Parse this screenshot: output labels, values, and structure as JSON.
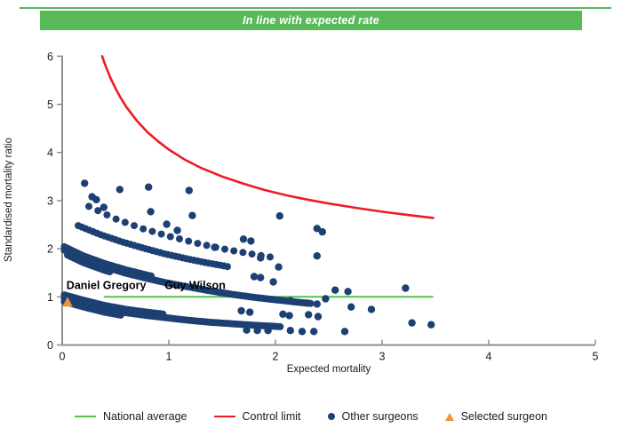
{
  "banner": {
    "title": "In line with expected rate",
    "bg_color": "#57b957",
    "text_color": "#ffffff"
  },
  "colors": {
    "navy": "#1d4073",
    "red": "#ed1c24",
    "green": "#52c352",
    "orange": "#f0922f",
    "axis": "#8f8f8f",
    "text": "#1a1a1a"
  },
  "chart_data": {
    "type": "scatter",
    "title": "In line with expected rate",
    "xlabel": "Expected mortality",
    "ylabel": "Standardised mortality ratio",
    "xlim": [
      0,
      5
    ],
    "ylim": [
      0,
      6
    ],
    "xticks": [
      0,
      1,
      2,
      3,
      4,
      5
    ],
    "yticks": [
      0,
      1,
      2,
      3,
      4,
      5,
      6
    ],
    "grid": false,
    "legend_position": "bottom",
    "national_average": {
      "value": 1,
      "x_start": 0.39,
      "x_end": 3.48
    },
    "control_limit": {
      "points": [
        [
          0.375,
          6.0
        ],
        [
          0.4,
          5.84
        ],
        [
          0.45,
          5.56
        ],
        [
          0.5,
          5.33
        ],
        [
          0.55,
          5.13
        ],
        [
          0.6,
          4.95
        ],
        [
          0.7,
          4.66
        ],
        [
          0.8,
          4.42
        ],
        [
          0.9,
          4.23
        ],
        [
          1.0,
          4.06
        ],
        [
          1.15,
          3.85
        ],
        [
          1.3,
          3.68
        ],
        [
          1.5,
          3.5
        ],
        [
          1.7,
          3.35
        ],
        [
          1.9,
          3.22
        ],
        [
          2.1,
          3.11
        ],
        [
          2.3,
          3.02
        ],
        [
          2.5,
          2.94
        ],
        [
          2.75,
          2.85
        ],
        [
          3.0,
          2.77
        ],
        [
          3.25,
          2.7
        ],
        [
          3.48,
          2.64
        ]
      ]
    },
    "selected_surgeon": {
      "x": 0.05,
      "y": 0.89
    },
    "annotations": [
      {
        "text": "Daniel Gregory",
        "x": 0.04,
        "y": 1.16
      },
      {
        "text": "Guy Wilson",
        "x": 0.96,
        "y": 1.16
      }
    ],
    "other_surgeons": {
      "points": [
        [
          0.21,
          3.36
        ],
        [
          0.54,
          3.23
        ],
        [
          0.81,
          3.28
        ],
        [
          1.19,
          3.21
        ],
        [
          0.28,
          3.08
        ],
        [
          0.32,
          3.02
        ],
        [
          0.39,
          2.86
        ],
        [
          0.83,
          2.77
        ],
        [
          1.22,
          2.69
        ],
        [
          0.98,
          2.51
        ],
        [
          1.08,
          2.38
        ],
        [
          1.43,
          2.03
        ],
        [
          1.7,
          2.2
        ],
        [
          1.77,
          2.16
        ],
        [
          2.04,
          2.68
        ],
        [
          2.39,
          2.42
        ],
        [
          2.44,
          2.35
        ],
        [
          1.86,
          1.81
        ],
        [
          2.39,
          1.85
        ],
        [
          2.03,
          1.62
        ],
        [
          1.8,
          1.42
        ],
        [
          1.86,
          1.4
        ],
        [
          1.98,
          1.31
        ],
        [
          2.56,
          1.14
        ],
        [
          2.68,
          1.11
        ],
        [
          3.22,
          1.18
        ],
        [
          2.14,
          0.92
        ],
        [
          2.29,
          0.87
        ],
        [
          2.39,
          0.85
        ],
        [
          2.47,
          0.96
        ],
        [
          2.71,
          0.79
        ],
        [
          2.9,
          0.74
        ],
        [
          1.68,
          0.71
        ],
        [
          1.76,
          0.68
        ],
        [
          2.07,
          0.64
        ],
        [
          2.13,
          0.61
        ],
        [
          2.31,
          0.63
        ],
        [
          2.4,
          0.59
        ],
        [
          1.73,
          0.31
        ],
        [
          1.83,
          0.3
        ],
        [
          1.93,
          0.3
        ],
        [
          2.14,
          0.3
        ],
        [
          2.25,
          0.28
        ],
        [
          2.36,
          0.28
        ],
        [
          2.65,
          0.28
        ],
        [
          3.28,
          0.46
        ],
        [
          3.46,
          0.42
        ]
      ]
    },
    "dense_bands": [
      {
        "anchors": [
          [
            0.02,
            0.97
          ],
          [
            0.2,
            0.86
          ],
          [
            0.4,
            0.75
          ],
          [
            0.6,
            0.67
          ],
          [
            0.8,
            0.61
          ],
          [
            1.0,
            0.56
          ],
          [
            1.2,
            0.51
          ],
          [
            1.4,
            0.47
          ],
          [
            1.6,
            0.44
          ],
          [
            1.8,
            0.41
          ],
          [
            2.05,
            0.38
          ]
        ],
        "step": 0.022,
        "dot_r": 4,
        "rows": [
          {
            "offset": 0,
            "from": 0.02,
            "to": 2.05
          },
          {
            "offset": 0.07,
            "from": 0.02,
            "to": 0.95
          },
          {
            "offset": -0.07,
            "from": 0.02,
            "to": 0.55
          }
        ]
      },
      {
        "anchors": [
          [
            0.02,
            1.97
          ],
          [
            0.2,
            1.78
          ],
          [
            0.4,
            1.62
          ],
          [
            0.6,
            1.49
          ],
          [
            0.8,
            1.38
          ],
          [
            1.0,
            1.28
          ],
          [
            1.2,
            1.2
          ],
          [
            1.4,
            1.12
          ],
          [
            1.6,
            1.05
          ],
          [
            1.8,
            0.99
          ],
          [
            2.0,
            0.94
          ],
          [
            2.2,
            0.89
          ],
          [
            2.35,
            0.86
          ]
        ],
        "step": 0.022,
        "dot_r": 4,
        "rows": [
          {
            "offset": 0,
            "from": 0.02,
            "to": 2.35
          },
          {
            "offset": 0.07,
            "from": 0.02,
            "to": 0.85
          },
          {
            "offset": -0.07,
            "from": 0.05,
            "to": 0.45
          }
        ]
      },
      {
        "anchors": [
          [
            0.15,
            2.48
          ],
          [
            0.35,
            2.3
          ],
          [
            0.55,
            2.15
          ],
          [
            0.75,
            2.02
          ],
          [
            0.95,
            1.9
          ],
          [
            1.15,
            1.8
          ],
          [
            1.35,
            1.71
          ],
          [
            1.55,
            1.63
          ]
        ],
        "step": 0.035,
        "dot_r": 4,
        "rows": [
          {
            "offset": 0,
            "from": 0.15,
            "to": 1.55
          }
        ]
      },
      {
        "anchors": [
          [
            0.25,
            2.88
          ],
          [
            0.5,
            2.62
          ],
          [
            0.75,
            2.42
          ],
          [
            1.0,
            2.26
          ],
          [
            1.25,
            2.12
          ],
          [
            1.5,
            2.0
          ],
          [
            1.75,
            1.9
          ],
          [
            2.0,
            1.81
          ]
        ],
        "step": 0.085,
        "dot_r": 4,
        "rows": [
          {
            "offset": 0,
            "from": 0.25,
            "to": 2.0
          }
        ]
      }
    ]
  },
  "legend": {
    "items": [
      {
        "label": "National average",
        "type": "line",
        "color": "#52c352"
      },
      {
        "label": "Control limit",
        "type": "line",
        "color": "#ed1c24"
      },
      {
        "label": "Other surgeons",
        "type": "dot",
        "color": "#1d4073"
      },
      {
        "label": "Selected surgeon",
        "type": "triangle",
        "color": "#f0922f"
      }
    ]
  }
}
